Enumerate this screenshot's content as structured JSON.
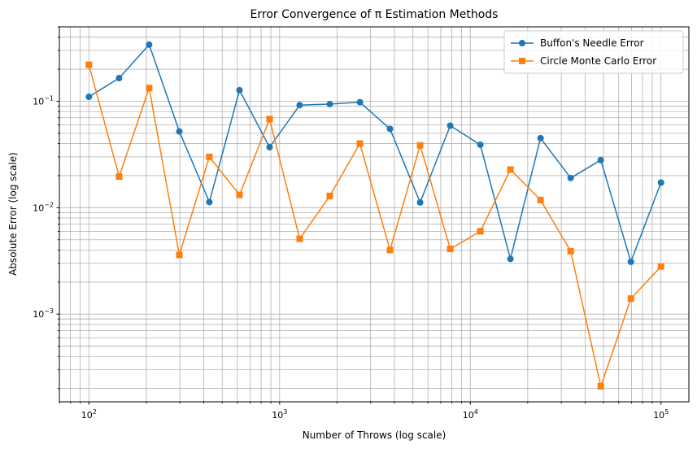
{
  "chart_data": {
    "type": "line",
    "title": "Error Convergence of π Estimation Methods",
    "xlabel": "Number of Throws (log scale)",
    "ylabel": "Absolute Error (log scale)",
    "xscale": "log",
    "yscale": "log",
    "xlim": [
      70,
      140000
    ],
    "ylim": [
      0.00015,
      0.5
    ],
    "grid": true,
    "grid_which": "both",
    "legend_position": "top-right",
    "x_ticks": [
      {
        "value": 100,
        "base": "10",
        "exp": "2"
      },
      {
        "value": 1000,
        "base": "10",
        "exp": "3"
      },
      {
        "value": 10000,
        "base": "10",
        "exp": "4"
      },
      {
        "value": 100000,
        "base": "10",
        "exp": "5"
      }
    ],
    "y_ticks": [
      {
        "value": 0.001,
        "base": "10",
        "exp": "−3"
      },
      {
        "value": 0.01,
        "base": "10",
        "exp": "−2"
      },
      {
        "value": 0.1,
        "base": "10",
        "exp": "−1"
      }
    ],
    "x": [
      100,
      144,
      207,
      298,
      428,
      616,
      886,
      1274,
      1833,
      2637,
      3793,
      5456,
      7848,
      11288,
      16238,
      23357,
      33598,
      48329,
      69519,
      100000
    ],
    "series": [
      {
        "name": "Buffon's Needle Error",
        "color": "#1f77b4",
        "marker": "circle",
        "values": [
          0.11,
          0.165,
          0.34,
          0.052,
          0.0113,
          0.127,
          0.037,
          0.092,
          0.094,
          0.098,
          0.055,
          0.0112,
          0.059,
          0.039,
          0.0033,
          0.045,
          0.019,
          0.028,
          0.0031,
          0.0172
        ]
      },
      {
        "name": "Circle Monte Carlo Error",
        "color": "#ff7f0e",
        "marker": "square",
        "values": [
          0.22,
          0.0196,
          0.133,
          0.0036,
          0.03,
          0.0132,
          0.068,
          0.0051,
          0.0129,
          0.04,
          0.004,
          0.0385,
          0.0041,
          0.006,
          0.0228,
          0.0118,
          0.0039,
          0.00021,
          0.0014,
          0.0028
        ]
      }
    ]
  }
}
